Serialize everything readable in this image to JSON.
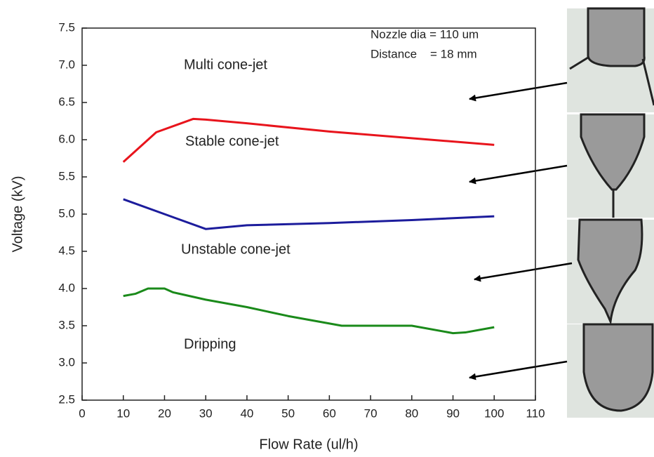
{
  "chart_data": {
    "type": "line",
    "xlabel": "Flow Rate (ul/h)",
    "ylabel": "Voltage (kV)",
    "xlim": [
      0,
      110
    ],
    "ylim": [
      2.5,
      7.5
    ],
    "xticks": [
      0,
      10,
      20,
      30,
      40,
      50,
      60,
      70,
      80,
      90,
      100,
      110
    ],
    "yticks": [
      2.5,
      {
        "value": 3,
        "label": "3.0"
      },
      3.5,
      {
        "value": 4,
        "label": "4.0"
      },
      4.5,
      {
        "value": 5,
        "label": "5.0"
      },
      5.5,
      {
        "value": 6,
        "label": "6.0"
      },
      6.5,
      {
        "value": 7,
        "label": "7.0"
      },
      7.5
    ],
    "annotations": [
      "Multi cone-jet",
      "Stable cone-jet",
      "Unstable cone-jet",
      "Dripping",
      "Nozzle dia = 110 um",
      "Distance    = 18 mm"
    ],
    "series": [
      {
        "color": "#e8141c",
        "x": [
          10,
          18,
          27,
          30,
          40,
          60,
          80,
          100
        ],
        "values": [
          5.7,
          6.1,
          6.28,
          6.27,
          6.22,
          6.11,
          6.02,
          5.93
        ]
      },
      {
        "color": "#1c1c9c",
        "x": [
          10,
          20,
          30,
          40,
          60,
          80,
          100
        ],
        "values": [
          5.2,
          5.0,
          4.8,
          4.85,
          4.88,
          4.92,
          4.97
        ]
      },
      {
        "color": "#1a8a1a",
        "x": [
          10,
          13,
          16,
          20,
          22,
          30,
          40,
          50,
          63,
          80,
          90,
          93,
          100
        ],
        "values": [
          3.9,
          3.93,
          4.0,
          4.0,
          3.95,
          3.85,
          3.75,
          3.63,
          3.5,
          3.5,
          3.4,
          3.41,
          3.48
        ]
      }
    ]
  }
}
